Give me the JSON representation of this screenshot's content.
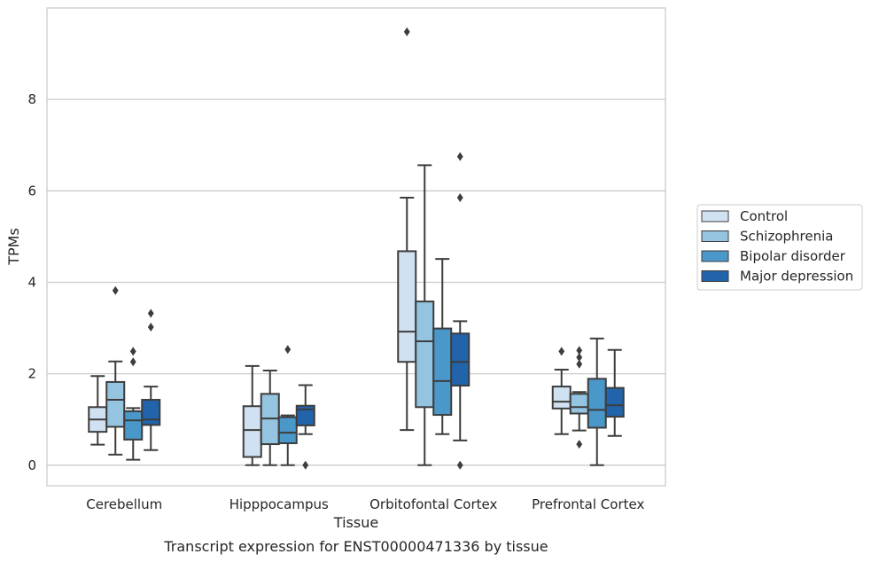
{
  "chart_data": {
    "type": "box",
    "caption": "Transcript expression for ENST00000471336 by tissue",
    "xlabel": "Tissue",
    "ylabel": "TPMs",
    "ylim": [
      -0.45,
      10.0
    ],
    "yticks": [
      "0",
      "2",
      "4",
      "6",
      "8"
    ],
    "grid": "horizontal",
    "legend_position": "right",
    "categories": [
      "Cerebellum",
      "Hipppocampus",
      "Orbitofontal Cortex",
      "Prefrontal Cortex"
    ],
    "series": [
      {
        "name": "Control",
        "color": "#d0e1f2",
        "boxes": [
          {
            "whislo": 0.45,
            "q1": 0.73,
            "med": 1.0,
            "q3": 1.27,
            "whishi": 1.95,
            "fliers": []
          },
          {
            "whislo": 0.0,
            "q1": 0.18,
            "med": 0.77,
            "q3": 1.29,
            "whishi": 2.17,
            "fliers": []
          },
          {
            "whislo": 0.77,
            "q1": 2.26,
            "med": 2.92,
            "q3": 4.68,
            "whishi": 5.85,
            "fliers": [
              9.48
            ]
          },
          {
            "whislo": 0.68,
            "q1": 1.24,
            "med": 1.39,
            "q3": 1.72,
            "whishi": 2.09,
            "fliers": [
              2.49
            ]
          }
        ]
      },
      {
        "name": "Schizophrenia",
        "color": "#94c4df",
        "boxes": [
          {
            "whislo": 0.23,
            "q1": 0.84,
            "med": 1.43,
            "q3": 1.82,
            "whishi": 2.27,
            "fliers": [
              3.82
            ]
          },
          {
            "whislo": 0.0,
            "q1": 0.46,
            "med": 1.02,
            "q3": 1.56,
            "whishi": 2.07,
            "fliers": []
          },
          {
            "whislo": 0.0,
            "q1": 1.27,
            "med": 2.71,
            "q3": 3.58,
            "whishi": 6.56,
            "fliers": []
          },
          {
            "whislo": 0.76,
            "q1": 1.13,
            "med": 1.27,
            "q3": 1.56,
            "whishi": 1.6,
            "fliers": [
              2.51,
              2.36,
              2.21,
              0.46
            ]
          }
        ]
      },
      {
        "name": "Bipolar disorder",
        "color": "#4a98c9",
        "boxes": [
          {
            "whislo": 0.12,
            "q1": 0.56,
            "med": 0.98,
            "q3": 1.18,
            "whishi": 1.25,
            "fliers": [
              2.49,
              2.26
            ]
          },
          {
            "whislo": 0.0,
            "q1": 0.48,
            "med": 0.71,
            "q3": 1.05,
            "whishi": 1.09,
            "fliers": [
              2.53
            ]
          },
          {
            "whislo": 0.68,
            "q1": 1.1,
            "med": 1.84,
            "q3": 2.99,
            "whishi": 4.51,
            "fliers": []
          },
          {
            "whislo": 0.0,
            "q1": 0.82,
            "med": 1.21,
            "q3": 1.89,
            "whishi": 2.77,
            "fliers": []
          }
        ]
      },
      {
        "name": "Major depression",
        "color": "#2164ab",
        "boxes": [
          {
            "whislo": 0.33,
            "q1": 0.88,
            "med": 1.0,
            "q3": 1.43,
            "whishi": 1.72,
            "fliers": [
              3.32,
              3.02
            ]
          },
          {
            "whislo": 0.68,
            "q1": 0.87,
            "med": 1.22,
            "q3": 1.3,
            "whishi": 1.75,
            "fliers": [
              0.0
            ]
          },
          {
            "whislo": 0.54,
            "q1": 1.74,
            "med": 2.26,
            "q3": 2.88,
            "whishi": 3.15,
            "fliers": [
              6.75,
              5.85,
              0.0
            ]
          },
          {
            "whislo": 0.64,
            "q1": 1.06,
            "med": 1.31,
            "q3": 1.69,
            "whishi": 2.52,
            "fliers": []
          }
        ]
      }
    ]
  }
}
